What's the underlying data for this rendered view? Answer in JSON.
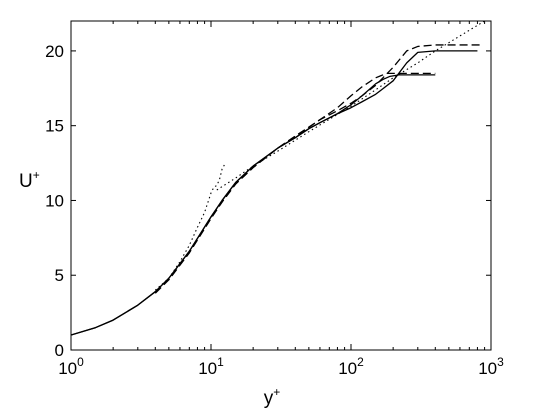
{
  "chart_data": {
    "type": "line",
    "xscale": "log",
    "xlim": [
      1,
      1000
    ],
    "ylim": [
      0,
      22
    ],
    "xlabel_main": "y",
    "xlabel_sup": "+",
    "ylabel_main": "U",
    "ylabel_sup": "+",
    "xticks": [
      {
        "value": 1,
        "base": "10",
        "exp": "0"
      },
      {
        "value": 10,
        "base": "10",
        "exp": "1"
      },
      {
        "value": 100,
        "base": "10",
        "exp": "2"
      },
      {
        "value": 1000,
        "base": "10",
        "exp": "3"
      }
    ],
    "yticks": [
      0,
      5,
      10,
      15,
      20
    ],
    "grid": false,
    "legend": null,
    "series": [
      {
        "style": "solid",
        "x": [
          1,
          1.5,
          2,
          3,
          4,
          5,
          7,
          10,
          12,
          15,
          20,
          30,
          40,
          50,
          60,
          80,
          100,
          120,
          150,
          170,
          190,
          220,
          300,
          400
        ],
        "y": [
          1.0,
          1.5,
          2.0,
          3.0,
          3.9,
          4.8,
          6.6,
          8.9,
          10.0,
          11.2,
          12.3,
          13.5,
          14.2,
          14.8,
          15.2,
          15.8,
          16.4,
          17.0,
          17.8,
          18.1,
          18.3,
          18.4,
          18.4,
          18.4
        ]
      },
      {
        "style": "solid",
        "x": [
          1,
          1.5,
          2,
          3,
          4,
          5,
          7,
          10,
          12,
          15,
          20,
          30,
          40,
          50,
          60,
          80,
          100,
          120,
          150,
          200,
          250,
          300,
          400,
          500,
          800
        ],
        "y": [
          1.0,
          1.5,
          2.0,
          3.0,
          3.9,
          4.8,
          6.6,
          8.9,
          10.0,
          11.2,
          12.3,
          13.5,
          14.2,
          14.8,
          15.2,
          15.8,
          16.2,
          16.6,
          17.1,
          18.0,
          19.2,
          19.9,
          20.0,
          20.0,
          20.0
        ]
      },
      {
        "style": "dashed",
        "x": [
          4,
          5,
          7,
          10,
          12,
          15,
          20,
          30,
          40,
          50,
          60,
          80,
          100,
          120,
          150,
          180,
          220,
          300,
          400
        ],
        "y": [
          3.8,
          4.7,
          6.5,
          8.8,
          9.9,
          11.1,
          12.2,
          13.5,
          14.3,
          14.9,
          15.4,
          16.2,
          17.0,
          17.6,
          18.2,
          18.5,
          18.5,
          18.5,
          18.5
        ]
      },
      {
        "style": "dashed",
        "x": [
          4,
          5,
          7,
          10,
          12,
          15,
          20,
          30,
          40,
          50,
          60,
          80,
          100,
          120,
          150,
          200,
          250,
          300,
          400,
          500,
          850
        ],
        "y": [
          3.8,
          4.7,
          6.5,
          8.8,
          9.9,
          11.1,
          12.2,
          13.5,
          14.3,
          14.9,
          15.4,
          16.0,
          16.5,
          17.0,
          17.7,
          18.9,
          20.0,
          20.3,
          20.4,
          20.4,
          20.4
        ]
      },
      {
        "style": "dotted",
        "x": [
          4,
          5,
          6,
          7,
          8,
          9,
          10,
          10.5,
          11,
          11.5,
          12,
          12.5
        ],
        "y": [
          4.0,
          4.8,
          5.9,
          7.0,
          8.2,
          9.2,
          10.5,
          10.9,
          11.0,
          11.4,
          12.1,
          12.4
        ]
      },
      {
        "style": "dotted",
        "x": [
          11,
          15,
          20,
          30,
          50,
          100,
          150,
          200,
          300,
          400,
          600,
          900
        ],
        "y": [
          10.7,
          11.5,
          12.3,
          13.3,
          14.6,
          16.3,
          17.4,
          18.2,
          19.2,
          20.0,
          21.0,
          22.0
        ]
      }
    ]
  }
}
